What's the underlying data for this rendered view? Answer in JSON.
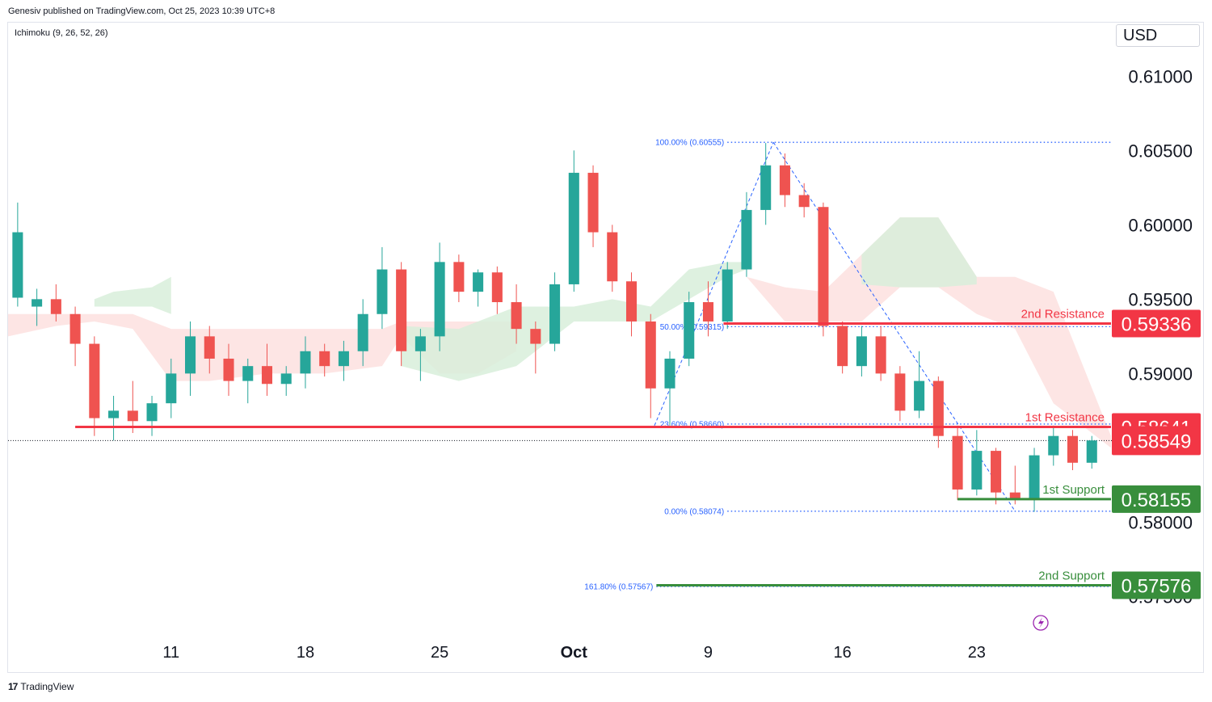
{
  "header": {
    "published": "Genesiv published on TradingView.com, Oct 25, 2023 10:39 UTC+8",
    "indicator": "Ichimoku (9, 26, 52, 26)",
    "currency": "USD"
  },
  "footer": {
    "brand": "TradingView",
    "logo_glyph": "17"
  },
  "colors": {
    "up": "#26a69a",
    "down": "#ef5350",
    "resistance": "#f23645",
    "support": "#388e3c",
    "fib": "#2962ff",
    "cloud_bull": "#d8eedb",
    "cloud_bear": "#fde0df"
  },
  "chart_data": {
    "type": "candlestick",
    "y_ticks": [
      "0.61000",
      "0.60500",
      "0.60000",
      "0.59500",
      "0.59000",
      "0.58000",
      "0.57500"
    ],
    "y_tick_values": [
      0.61,
      0.605,
      0.6,
      0.595,
      0.59,
      0.58,
      0.575
    ],
    "ylim": [
      0.5722,
      0.6136
    ],
    "x_ticks": [
      "11",
      "18",
      "25",
      "Oct",
      "9",
      "16",
      "23"
    ],
    "x_tick_index": [
      8,
      15,
      22,
      29,
      36,
      43,
      50
    ],
    "xlim": [
      -0.5,
      57
    ],
    "candles": [
      [
        0.5951,
        0.6015,
        0.5945,
        0.5995
      ],
      [
        0.5945,
        0.5957,
        0.5932,
        0.595
      ],
      [
        0.595,
        0.596,
        0.5935,
        0.594
      ],
      [
        0.594,
        0.5945,
        0.5905,
        0.592
      ],
      [
        0.592,
        0.5925,
        0.5858,
        0.587
      ],
      [
        0.587,
        0.5885,
        0.5855,
        0.5875
      ],
      [
        0.5875,
        0.5895,
        0.586,
        0.5868
      ],
      [
        0.5868,
        0.5885,
        0.5858,
        0.588
      ],
      [
        0.588,
        0.591,
        0.587,
        0.59
      ],
      [
        0.59,
        0.5935,
        0.5885,
        0.5925
      ],
      [
        0.5925,
        0.5932,
        0.59,
        0.591
      ],
      [
        0.591,
        0.592,
        0.5885,
        0.5895
      ],
      [
        0.5895,
        0.591,
        0.588,
        0.5905
      ],
      [
        0.5905,
        0.592,
        0.5885,
        0.5893
      ],
      [
        0.5893,
        0.5905,
        0.5885,
        0.59
      ],
      [
        0.59,
        0.5925,
        0.589,
        0.5915
      ],
      [
        0.5915,
        0.592,
        0.5898,
        0.5905
      ],
      [
        0.5905,
        0.5922,
        0.5895,
        0.5915
      ],
      [
        0.5915,
        0.595,
        0.5905,
        0.594
      ],
      [
        0.594,
        0.5985,
        0.593,
        0.597
      ],
      [
        0.597,
        0.5975,
        0.5905,
        0.5915
      ],
      [
        0.5915,
        0.593,
        0.5895,
        0.5925
      ],
      [
        0.5925,
        0.5988,
        0.5915,
        0.5975
      ],
      [
        0.5975,
        0.598,
        0.5948,
        0.5955
      ],
      [
        0.5955,
        0.597,
        0.5945,
        0.5968
      ],
      [
        0.5968,
        0.5972,
        0.594,
        0.5948
      ],
      [
        0.5948,
        0.596,
        0.592,
        0.593
      ],
      [
        0.593,
        0.5935,
        0.59,
        0.592
      ],
      [
        0.592,
        0.5968,
        0.5915,
        0.596
      ],
      [
        0.596,
        0.605,
        0.5955,
        0.6035
      ],
      [
        0.6035,
        0.604,
        0.5985,
        0.5995
      ],
      [
        0.5995,
        0.6,
        0.5955,
        0.5962
      ],
      [
        0.5962,
        0.5968,
        0.5925,
        0.5935
      ],
      [
        0.5935,
        0.594,
        0.587,
        0.589
      ],
      [
        0.589,
        0.5915,
        0.5865,
        0.591
      ],
      [
        0.591,
        0.5955,
        0.5905,
        0.5948
      ],
      [
        0.5948,
        0.5962,
        0.5925,
        0.5935
      ],
      [
        0.5935,
        0.5975,
        0.593,
        0.597
      ],
      [
        0.597,
        0.6022,
        0.5965,
        0.601
      ],
      [
        0.601,
        0.6055,
        0.6,
        0.604
      ],
      [
        0.604,
        0.6048,
        0.6012,
        0.602
      ],
      [
        0.602,
        0.6028,
        0.6005,
        0.6012
      ],
      [
        0.6012,
        0.6015,
        0.5925,
        0.5932
      ],
      [
        0.5932,
        0.5935,
        0.59,
        0.5905
      ],
      [
        0.5905,
        0.5932,
        0.5898,
        0.5925
      ],
      [
        0.5925,
        0.5932,
        0.5895,
        0.59
      ],
      [
        0.59,
        0.5905,
        0.5868,
        0.5875
      ],
      [
        0.5875,
        0.5915,
        0.587,
        0.5895
      ],
      [
        0.5895,
        0.5898,
        0.585,
        0.5858
      ],
      [
        0.5858,
        0.5865,
        0.5815,
        0.5822
      ],
      [
        0.5822,
        0.5862,
        0.5818,
        0.5848
      ],
      [
        0.5848,
        0.585,
        0.5812,
        0.582
      ],
      [
        0.582,
        0.5838,
        0.5812,
        0.5816
      ],
      [
        0.5816,
        0.585,
        0.5807,
        0.5845
      ],
      [
        0.5845,
        0.5865,
        0.5838,
        0.5858
      ],
      [
        0.5858,
        0.5862,
        0.5835,
        0.584
      ],
      [
        0.584,
        0.5858,
        0.5836,
        0.5855
      ]
    ],
    "cloud": [
      {
        "x": [
          -0.5,
          2,
          4,
          6,
          8,
          10,
          13,
          16,
          19,
          20,
          22,
          24,
          26
        ],
        "top": [
          0.594,
          0.594,
          0.594,
          0.594,
          0.593,
          0.593,
          0.593,
          0.593,
          0.593,
          0.5935,
          0.5935,
          0.5935,
          0.5935
        ],
        "bottom": [
          0.5925,
          0.5932,
          0.5935,
          0.593,
          0.5895,
          0.5895,
          0.59,
          0.59,
          0.5905,
          0.5925,
          0.59,
          0.59,
          0.5915
        ],
        "tone": "bear"
      },
      {
        "x": [
          4,
          5,
          7,
          8
        ],
        "top": [
          0.595,
          0.5955,
          0.5958,
          0.5965
        ],
        "bottom": [
          0.5945,
          0.5945,
          0.5945,
          0.594
        ],
        "tone": "bull"
      },
      {
        "x": [
          20,
          23,
          26,
          29,
          31,
          33,
          35,
          37,
          38
        ],
        "top": [
          0.5932,
          0.593,
          0.5945,
          0.5945,
          0.595,
          0.5945,
          0.597,
          0.5975,
          0.5975
        ],
        "bottom": [
          0.5905,
          0.5895,
          0.5905,
          0.5935,
          0.5935,
          0.5935,
          0.595,
          0.5965,
          0.597
        ],
        "tone": "bull"
      },
      {
        "x": [
          38,
          40,
          42,
          44,
          46,
          48,
          50,
          52,
          54,
          57
        ],
        "top": [
          0.5965,
          0.5958,
          0.5955,
          0.598,
          0.6005,
          0.6005,
          0.5965,
          0.5965,
          0.5955,
          0.5858
        ],
        "bottom": [
          0.5965,
          0.5935,
          0.5935,
          0.5935,
          0.5958,
          0.5958,
          0.594,
          0.593,
          0.588,
          0.585
        ],
        "tone": "bear"
      },
      {
        "x": [
          44,
          46,
          48,
          50
        ],
        "top": [
          0.598,
          0.6005,
          0.6005,
          0.5965
        ],
        "bottom": [
          0.596,
          0.5958,
          0.5958,
          0.596
        ],
        "tone": "bull"
      }
    ],
    "fib_levels": [
      {
        "label": "100.00% (0.60555)",
        "value": 0.60555
      },
      {
        "label": "50.00% (0.59315)",
        "value": 0.59315
      },
      {
        "label": "23.60% (0.58660)",
        "value": 0.5866
      },
      {
        "label": "0.00% (0.58074)",
        "value": 0.58074
      },
      {
        "label": "161.80% (0.57567)",
        "value": 0.57567
      }
    ],
    "fib_start_index": 37,
    "fib_ext_start_index": 33.3,
    "trend_lines": [
      {
        "from": [
          33.2,
          0.5865
        ],
        "to": [
          39.4,
          0.60555
        ]
      },
      {
        "from": [
          39.4,
          0.60555
        ],
        "to": [
          52,
          0.58074
        ]
      }
    ],
    "levels": [
      {
        "label": "2nd Resistance",
        "value": 0.59336,
        "badge": "0.59336",
        "type": "resistance",
        "from_index": 36.8
      },
      {
        "label": "1st Resistance",
        "value": 0.58641,
        "badge": "0.58641",
        "type": "resistance",
        "from_index": 3
      },
      {
        "label": "1st Support",
        "value": 0.58155,
        "badge": "0.58155",
        "type": "support",
        "from_index": 49
      },
      {
        "label": "2nd Support",
        "value": 0.57576,
        "badge": "0.57576",
        "type": "support",
        "from_index": 33.3
      }
    ],
    "last_price": {
      "value": 0.58549,
      "badge": "0.58549"
    }
  }
}
